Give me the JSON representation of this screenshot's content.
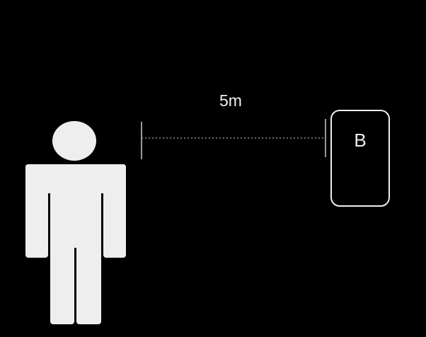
{
  "diagram": {
    "distance_label": "5m",
    "target_label": "B",
    "colors": {
      "background": "#000000",
      "figure": "#eeeeee",
      "line": "#cccccc"
    },
    "icons": {
      "person": "person-icon",
      "target": "rounded-rectangle"
    }
  }
}
